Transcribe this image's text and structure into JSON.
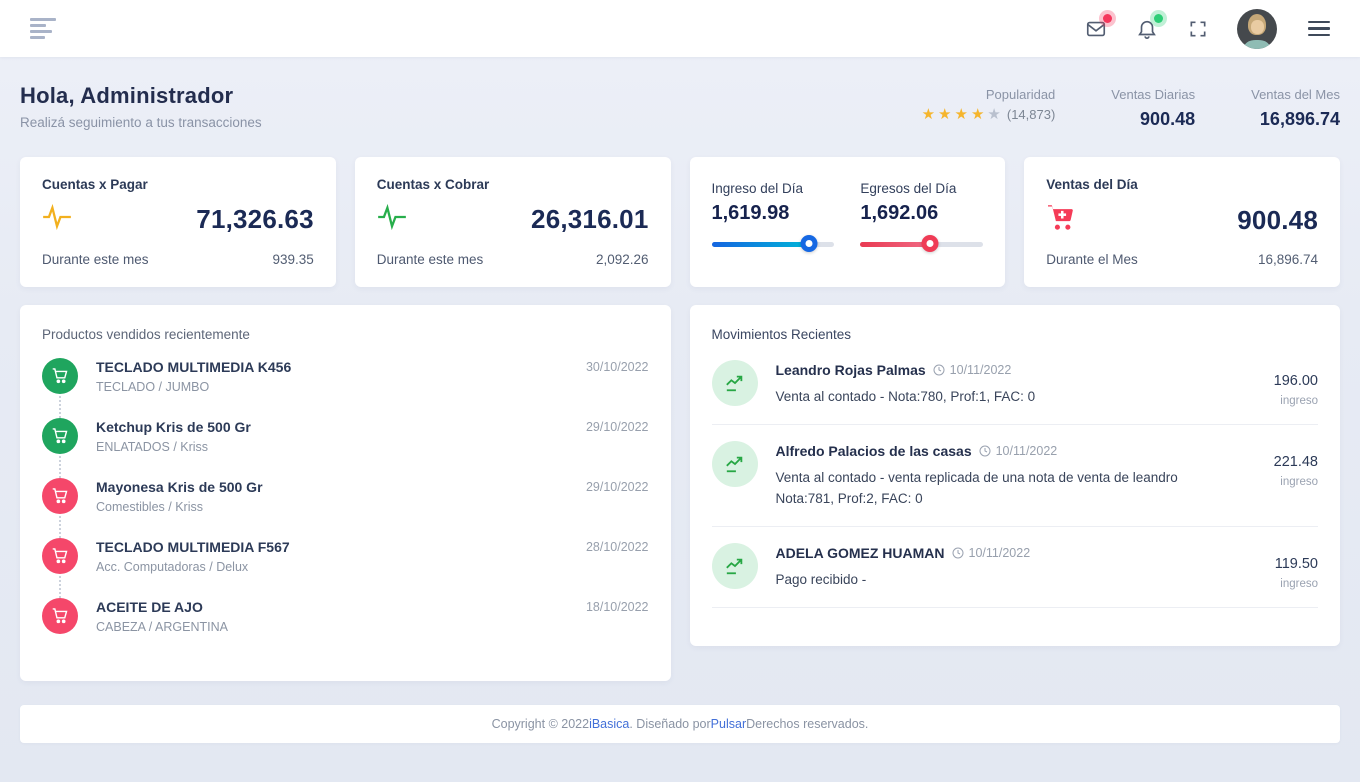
{
  "topbar": {
    "icons": {
      "left_menu": "nav-lines-icon",
      "mail": "mail-icon",
      "bell": "bell-icon",
      "fullscreen": "fullscreen-icon",
      "avatar": "user-avatar",
      "right_menu": "hamburger-menu-icon"
    },
    "badges": {
      "mail": "#F5365C",
      "bell": "#2DCE76"
    }
  },
  "header": {
    "greeting": "Hola, Administrador",
    "subtitle": "Realizá seguimiento a tus transacciones",
    "popularity": {
      "label": "Popularidad",
      "rating": 4,
      "max": 5,
      "count": "(14,873)"
    },
    "daily_sales": {
      "label": "Ventas Diarias",
      "value": "900.48"
    },
    "monthly_sales": {
      "label": "Ventas del Mes",
      "value": "16,896.74"
    }
  },
  "cards": {
    "payable": {
      "title": "Cuentas x Pagar",
      "value": "71,326.63",
      "period_label": "Durante este mes",
      "period_value": "939.35",
      "icon": "activity-pulse",
      "icon_color": "#F2B01E"
    },
    "receivable": {
      "title": "Cuentas x Cobrar",
      "value": "26,316.01",
      "period_label": "Durante este mes",
      "period_value": "2,092.26",
      "icon": "activity-pulse",
      "icon_color": "#27AE4B"
    },
    "day_flows": {
      "income": {
        "label": "Ingreso del Día",
        "value": "1,619.98",
        "fill": "79%",
        "color_from": "#1565E0",
        "color_to": "#00B5D8",
        "knob_color": "#1668E3"
      },
      "expenses": {
        "label": "Egresos del Día",
        "value": "1,692.06",
        "fill": "57%",
        "color_from": "#E93A52",
        "color_to": "#F06A84",
        "knob_color": "#EF3B55"
      }
    },
    "day_sales": {
      "title": "Ventas del Día",
      "value": "900.48",
      "period_label": "Durante el Mes",
      "period_value": "16,896.74",
      "icon": "cart-plus",
      "icon_color": "#F53B57"
    }
  },
  "products": {
    "title": "Productos vendidos recientemente",
    "items": [
      {
        "name": "TECLADO MULTIMEDIA K456",
        "category": "TECLADO / JUMBO",
        "date": "30/10/2022",
        "icon": "cart-icon",
        "icon_color": "#1FA55E"
      },
      {
        "name": "Ketchup Kris de 500 Gr",
        "category": "ENLATADOS / Kriss",
        "date": "29/10/2022",
        "icon": "cart-icon",
        "icon_color": "#1FA55E"
      },
      {
        "name": "Mayonesa Kris de 500 Gr",
        "category": "Comestibles / Kriss",
        "date": "29/10/2022",
        "icon": "cart-icon",
        "icon_color": "#F5476A"
      },
      {
        "name": "TECLADO MULTIMEDIA F567",
        "category": "Acc. Computadoras / Delux",
        "date": "28/10/2022",
        "icon": "cart-icon",
        "icon_color": "#F5476A"
      },
      {
        "name": "ACEITE DE AJO",
        "category": "CABEZA / ARGENTINA",
        "date": "18/10/2022",
        "icon": "cart-icon",
        "icon_color": "#F5476A"
      }
    ]
  },
  "movements": {
    "title": "Movimientos Recientes",
    "items": [
      {
        "name": "Leandro Rojas Palmas",
        "date": "10/11/2022",
        "description": "Venta al contado - Nota:780, Prof:1, FAC: 0",
        "amount": "196.00",
        "type": "ingreso"
      },
      {
        "name": "Alfredo Palacios de las casas",
        "date": "10/11/2022",
        "description": "Venta al contado - venta replicada de una nota de venta de leandro Nota:781, Prof:2, FAC: 0",
        "amount": "221.48",
        "type": "ingreso"
      },
      {
        "name": "ADELA GOMEZ HUAMAN",
        "date": "10/11/2022",
        "description": "Pago recibido -",
        "amount": "119.50",
        "type": "ingreso"
      }
    ]
  },
  "footer": {
    "copyright_prefix": "Copyright © 2022 ",
    "brand_link": "iBasica",
    "middle_text": ". Diseñado por ",
    "designer_link": "Pulsar",
    "suffix_text": " Derechos reservados."
  },
  "colors": {
    "page_bg": "#E8ECF5",
    "card_bg": "#FFFFFF",
    "heading": "#232D4E",
    "value_navy": "#1B2A55",
    "muted_text": "#8A93A6",
    "star_on": "#F5B52D",
    "star_off": "#B9C0CE",
    "link_blue": "#4370D8",
    "badge_red": "#F5365C",
    "badge_green": "#2DCE76",
    "movement_icon_bg": "#D9F2E2",
    "movement_icon_fg": "#28A745"
  }
}
